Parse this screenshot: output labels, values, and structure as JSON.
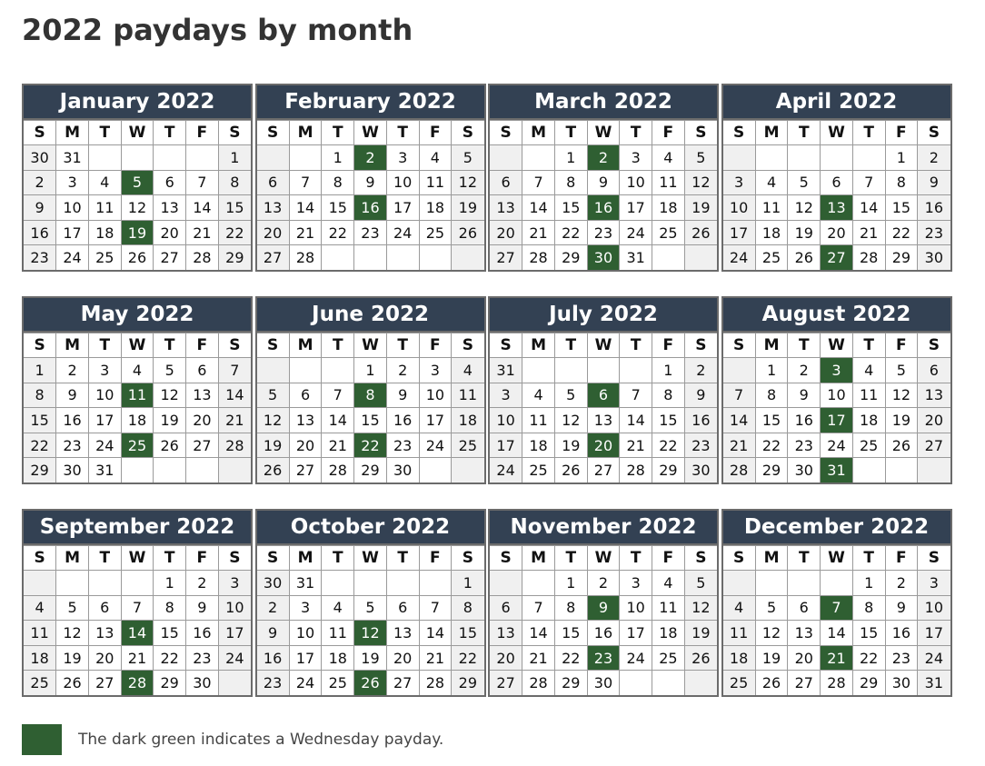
{
  "title": "2022 paydays by month",
  "colors": {
    "header_bg": "#334153",
    "payday_green": "#2f5f32",
    "weekend_bg": "#f0f0f0"
  },
  "weekday_labels": [
    "S",
    "M",
    "T",
    "W",
    "T",
    "F",
    "S"
  ],
  "legend_text": "The dark green indicates a Wednesday payday.",
  "months": [
    {
      "name": "January 2022",
      "offset": 6,
      "days": 31,
      "paydays": [
        5,
        19
      ]
    },
    {
      "name": "February 2022",
      "offset": 2,
      "days": 28,
      "paydays": [
        2,
        16
      ]
    },
    {
      "name": "March 2022",
      "offset": 2,
      "days": 31,
      "paydays": [
        2,
        16,
        30
      ]
    },
    {
      "name": "April 2022",
      "offset": 5,
      "days": 30,
      "paydays": [
        13,
        27
      ]
    },
    {
      "name": "May 2022",
      "offset": 0,
      "days": 31,
      "paydays": [
        11,
        25
      ]
    },
    {
      "name": "June 2022",
      "offset": 3,
      "days": 30,
      "paydays": [
        8,
        22
      ]
    },
    {
      "name": "July 2022",
      "offset": 5,
      "days": 31,
      "paydays": [
        6,
        20
      ]
    },
    {
      "name": "August 2022",
      "offset": 1,
      "days": 31,
      "paydays": [
        3,
        17,
        31
      ]
    },
    {
      "name": "September 2022",
      "offset": 4,
      "days": 30,
      "paydays": [
        14,
        28
      ]
    },
    {
      "name": "October 2022",
      "offset": 6,
      "days": 31,
      "paydays": [
        12,
        26
      ]
    },
    {
      "name": "November 2022",
      "offset": 2,
      "days": 30,
      "paydays": [
        9,
        23
      ]
    },
    {
      "name": "December 2022",
      "offset": 4,
      "days": 31,
      "paydays": [
        7,
        21
      ]
    }
  ]
}
